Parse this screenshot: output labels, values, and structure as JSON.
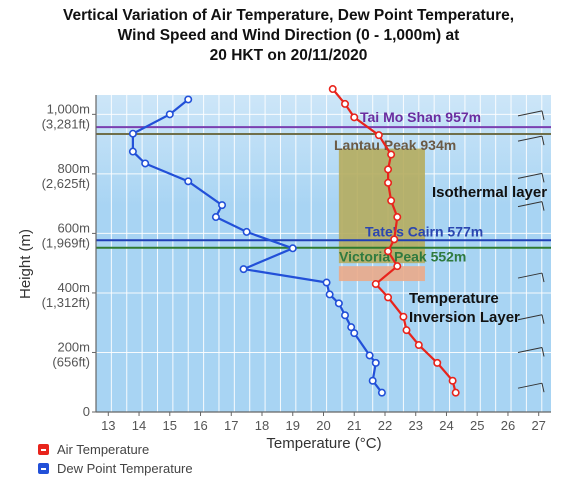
{
  "title_lines": [
    "Vertical Variation of Air Temperature, Dew Point Temperature,",
    "Wind Speed and Wind Direction (0 - 1,000m) at",
    "20 HKT on 20/11/2020"
  ],
  "colors": {
    "plot_bg": "#a8d4f3",
    "plot_bg_top": "#cde6f8",
    "grid": "#ffffff",
    "air_temp": "#e8241c",
    "dew_point": "#2250d8",
    "isothermal": "#b5ac5e",
    "inversion": "#eaaa8a"
  },
  "chart_data": {
    "type": "line",
    "xlabel": "Temperature (°C)",
    "ylabel": "Height (m)",
    "xlim": [
      12.6,
      27.4
    ],
    "ylim": [
      0,
      1065
    ],
    "x_ticks": [
      13,
      14,
      15,
      16,
      17,
      18,
      19,
      20,
      21,
      22,
      23,
      24,
      25,
      26,
      27
    ],
    "y_ticks": [
      {
        "value": 0,
        "label": "0",
        "sublabel": ""
      },
      {
        "value": 200,
        "label": "200m",
        "sublabel": "(656ft)"
      },
      {
        "value": 400,
        "label": "400m",
        "sublabel": "(1,312ft)"
      },
      {
        "value": 600,
        "label": "600m",
        "sublabel": "(1,969ft)"
      },
      {
        "value": 800,
        "label": "800m",
        "sublabel": "(2,625ft)"
      },
      {
        "value": 1000,
        "label": "1,000m",
        "sublabel": "(3,281ft)"
      }
    ],
    "grid": true,
    "legend_position": "bottom-left",
    "series": [
      {
        "name": "Air Temperature",
        "color": "#e8241c",
        "points": [
          [
            24.3,
            65
          ],
          [
            24.2,
            105
          ],
          [
            23.7,
            165
          ],
          [
            23.1,
            225
          ],
          [
            22.7,
            275
          ],
          [
            22.6,
            320
          ],
          [
            22.1,
            385
          ],
          [
            21.7,
            430
          ],
          [
            22.4,
            490
          ],
          [
            22.1,
            540
          ],
          [
            22.3,
            580
          ],
          [
            22.4,
            655
          ],
          [
            22.2,
            710
          ],
          [
            22.1,
            770
          ],
          [
            22.1,
            815
          ],
          [
            22.2,
            865
          ],
          [
            21.8,
            930
          ],
          [
            21.0,
            990
          ],
          [
            20.7,
            1035
          ],
          [
            20.3,
            1085
          ]
        ]
      },
      {
        "name": "Dew Point Temperature",
        "color": "#2250d8",
        "points": [
          [
            21.9,
            65
          ],
          [
            21.6,
            105
          ],
          [
            21.7,
            165
          ],
          [
            21.5,
            190
          ],
          [
            21.0,
            265
          ],
          [
            20.9,
            285
          ],
          [
            20.7,
            325
          ],
          [
            20.5,
            365
          ],
          [
            20.2,
            395
          ],
          [
            20.1,
            435
          ],
          [
            17.4,
            480
          ],
          [
            19.0,
            550
          ],
          [
            17.5,
            605
          ],
          [
            16.5,
            655
          ],
          [
            16.7,
            695
          ],
          [
            15.6,
            775
          ],
          [
            14.2,
            835
          ],
          [
            13.8,
            875
          ],
          [
            13.8,
            935
          ],
          [
            15.0,
            1000
          ],
          [
            15.6,
            1050
          ]
        ]
      }
    ],
    "reference_lines": [
      {
        "label": "Tai Mo Shan 957m",
        "value": 957,
        "color": "#7a3fb0",
        "text_color": "#6a2da0"
      },
      {
        "label": "Lantau Peak 934m",
        "value": 934,
        "color": "#6f6f4a",
        "text_color": "#6b5a45"
      },
      {
        "label": "Tate's Cairn 577m",
        "value": 577,
        "color": "#1f3fb6",
        "text_color": "#2b46b0"
      },
      {
        "label": "Victoria Peak 552m",
        "value": 552,
        "color": "#2f7a2f",
        "text_color": "#2f7a3f"
      }
    ],
    "annotations": [
      {
        "label": "Isothermal layer",
        "x_range": [
          20.5,
          23.3
        ],
        "y_range": [
          500,
          885
        ],
        "color": "#b5ac5e"
      },
      {
        "label": "Temperature Inversion Layer",
        "x_range": [
          20.5,
          23.3
        ],
        "y_range": [
          440,
          490
        ],
        "color": "#eaaa8a"
      }
    ],
    "annotation_text": {
      "isothermal": "Isothermal layer",
      "inversion_line1": "Temperature",
      "inversion_line2": "Inversion Layer"
    },
    "wind_barb_heights": [
      80,
      200,
      310,
      450,
      690,
      785,
      910,
      995
    ]
  }
}
